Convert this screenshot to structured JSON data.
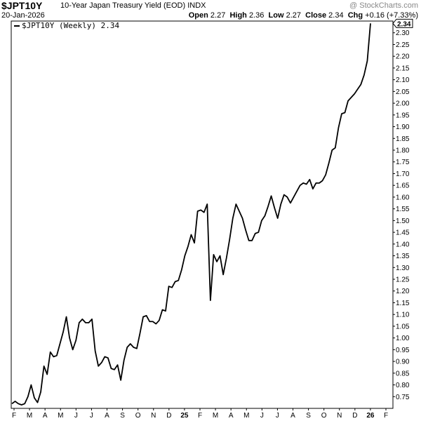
{
  "header": {
    "symbol": "$JPT10Y",
    "description": "10-Year Japan Treasury Yield (EOD)",
    "exchange": "INDX",
    "watermark": "@ StockCharts.com",
    "date": "20-Jan-2026",
    "open_label": "Open",
    "open_value": "2.27",
    "high_label": "High",
    "high_value": "2.36",
    "low_label": "Low",
    "low_value": "2.27",
    "close_label": "Close",
    "close_value": "2.34",
    "chg_label": "Chg",
    "chg_value": "+0.16 (+7.33%)"
  },
  "legend": {
    "label": "$JPT10Y (Weekly) 2.34"
  },
  "chart_data": {
    "type": "line",
    "title": "$JPT10Y 10-Year Japan Treasury Yield (EOD)",
    "series": [
      {
        "name": "$JPT10Y (Weekly)",
        "color": "#000000",
        "last_value": 2.34,
        "values": [
          0.72,
          0.73,
          0.72,
          0.715,
          0.72,
          0.75,
          0.8,
          0.745,
          0.725,
          0.77,
          0.88,
          0.845,
          0.94,
          0.92,
          0.925,
          0.975,
          1.025,
          1.09,
          1.0,
          0.95,
          0.99,
          1.065,
          1.08,
          1.065,
          1.065,
          1.08,
          0.945,
          0.88,
          0.895,
          0.92,
          0.915,
          0.87,
          0.865,
          0.885,
          0.82,
          0.905,
          0.96,
          0.975,
          0.96,
          0.955,
          1.02,
          1.09,
          1.095,
          1.07,
          1.07,
          1.06,
          1.075,
          1.12,
          1.115,
          1.22,
          1.215,
          1.24,
          1.245,
          1.29,
          1.35,
          1.39,
          1.44,
          1.405,
          1.54,
          1.545,
          1.535,
          1.57,
          1.16,
          1.355,
          1.325,
          1.35,
          1.27,
          1.34,
          1.42,
          1.51,
          1.57,
          1.54,
          1.51,
          1.46,
          1.415,
          1.415,
          1.445,
          1.45,
          1.5,
          1.52,
          1.56,
          1.605,
          1.555,
          1.51,
          1.57,
          1.61,
          1.6,
          1.575,
          1.6,
          1.625,
          1.65,
          1.66,
          1.655,
          1.675,
          1.635,
          1.66,
          1.66,
          1.67,
          1.695,
          1.745,
          1.8,
          1.81,
          1.895,
          1.955,
          1.96,
          2.01,
          2.025,
          2.04,
          2.06,
          2.08,
          2.12,
          2.18,
          2.34
        ]
      }
    ],
    "x_tick_labels": [
      "F",
      "M",
      "A",
      "M",
      "J",
      "J",
      "A",
      "S",
      "O",
      "N",
      "D",
      "25",
      "F",
      "M",
      "A",
      "M",
      "J",
      "J",
      "A",
      "S",
      "O",
      "N",
      "D",
      "26",
      "F"
    ],
    "y_ticks": [
      0.75,
      0.8,
      0.85,
      0.9,
      0.95,
      1.0,
      1.05,
      1.1,
      1.15,
      1.2,
      1.25,
      1.3,
      1.35,
      1.4,
      1.45,
      1.5,
      1.55,
      1.6,
      1.65,
      1.7,
      1.75,
      1.8,
      1.85,
      1.9,
      1.95,
      2.0,
      2.05,
      2.1,
      2.15,
      2.2,
      2.25,
      2.3
    ],
    "y_tick_labels": [
      "0.75",
      "0.80",
      "0.85",
      "0.90",
      "0.95",
      "1.00",
      "1.05",
      "1.10",
      "1.15",
      "1.20",
      "1.25",
      "1.30",
      "1.35",
      "1.40",
      "1.45",
      "1.50",
      "1.55",
      "1.60",
      "1.65",
      "1.70",
      "1.75",
      "1.80",
      "1.85",
      "1.90",
      "1.95",
      "2.00",
      "2.05",
      "2.10",
      "2.15",
      "2.20",
      "2.25",
      "2.30"
    ],
    "last_value_label": "2.34",
    "ylim": [
      0.7,
      2.35
    ],
    "grid": false,
    "y_axis_position": "right"
  }
}
